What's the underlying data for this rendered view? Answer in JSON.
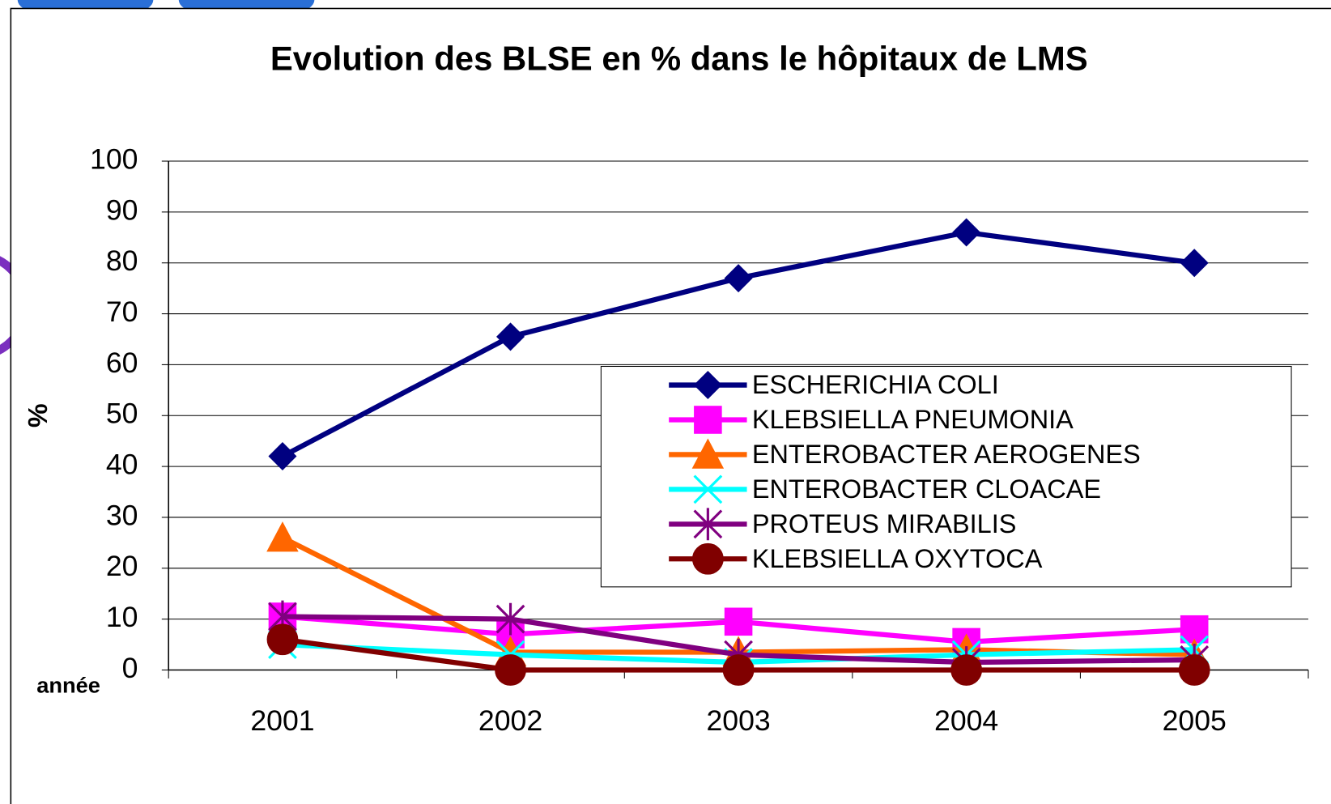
{
  "chart_data": {
    "type": "line",
    "title": "Evolution des BLSE en % dans le hôpitaux de LMS",
    "y_label": "%",
    "x_label": "année",
    "categories": [
      "2001",
      "2002",
      "2003",
      "2004",
      "2005"
    ],
    "ylim": [
      0,
      100
    ],
    "yticks": [
      0,
      10,
      20,
      30,
      40,
      50,
      60,
      70,
      80,
      90,
      100
    ],
    "grid": true,
    "legend": "right",
    "series": [
      {
        "name": "ESCHERICHIA COLI",
        "color": "#000080",
        "marker": "diamond",
        "values": [
          42,
          65.5,
          77,
          86,
          80
        ]
      },
      {
        "name": "KLEBSIELLA PNEUMONIA",
        "color": "#ff00ff",
        "marker": "square",
        "values": [
          10.5,
          7,
          9.5,
          5.5,
          8
        ]
      },
      {
        "name": "ENTEROBACTER AEROGENES",
        "color": "#ff6600",
        "marker": "triangle",
        "values": [
          26,
          3.5,
          3.5,
          4,
          3
        ]
      },
      {
        "name": "ENTEROBACTER CLOACAE",
        "color": "#00ffff",
        "marker": "x",
        "values": [
          5,
          3,
          1.5,
          3,
          4
        ]
      },
      {
        "name": "PROTEUS MIRABILIS",
        "color": "#800080",
        "marker": "star",
        "values": [
          10.5,
          10,
          3,
          1.5,
          2
        ]
      },
      {
        "name": "KLEBSIELLA OXYTOCA",
        "color": "#800000",
        "marker": "circle",
        "values": [
          6,
          0,
          0,
          0,
          0
        ]
      }
    ]
  }
}
